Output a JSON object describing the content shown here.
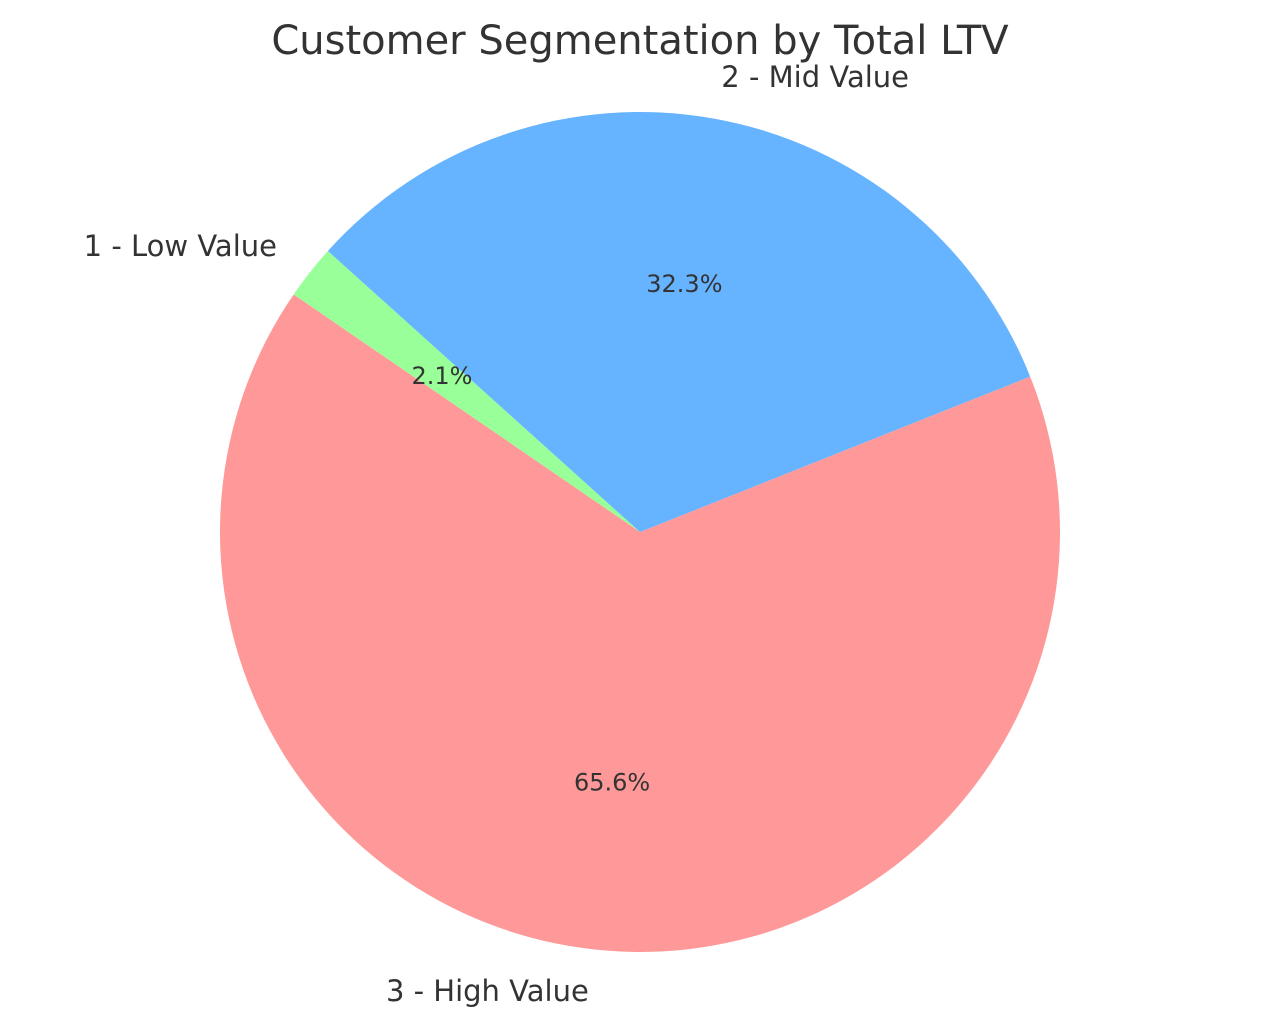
{
  "chart_data": {
    "type": "pie",
    "title": "Customer Segmentation by Total LTV",
    "start_angle_deg": 138,
    "direction": "counterclockwise",
    "slices": [
      {
        "label": "1 - Low Value",
        "value": 2.1,
        "pct_label": "2.1%",
        "color": "#99ff99"
      },
      {
        "label": "3 - High Value",
        "value": 65.6,
        "pct_label": "65.6%",
        "color": "#ff9999"
      },
      {
        "label": "2 - Mid Value",
        "value": 32.3,
        "pct_label": "32.3%",
        "color": "#66b3ff"
      }
    ]
  }
}
